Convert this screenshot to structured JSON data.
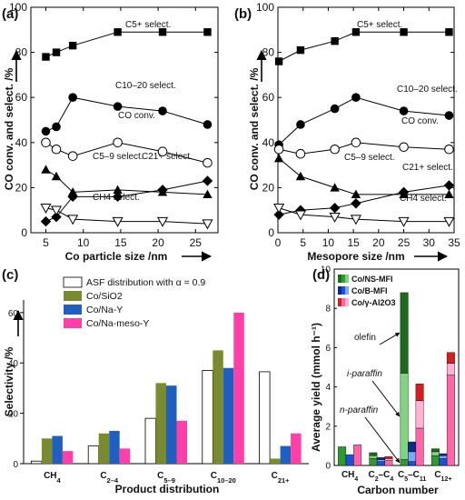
{
  "chart_data": [
    {
      "panel": "(a)",
      "type": "line",
      "xlabel": "Co particle size /nm",
      "ylabel": "CO conv. and select. /%",
      "xlim": [
        3,
        28
      ],
      "ylim": [
        0,
        100
      ],
      "xticks": [
        5,
        10,
        15,
        20,
        25
      ],
      "yticks": [
        0,
        20,
        40,
        60,
        80,
        100
      ],
      "series": [
        {
          "name": "C5+ select.",
          "marker": "square",
          "x": [
            5,
            6.4,
            8.6,
            14.6,
            20.6,
            26.6
          ],
          "y": [
            78,
            80,
            83,
            89,
            89,
            89
          ]
        },
        {
          "name": "C10–20 select.",
          "marker": "circle",
          "x": [
            5,
            6.4,
            8.6,
            14.6,
            20.6,
            26.6
          ],
          "y": [
            45,
            47,
            60,
            56,
            54,
            48
          ]
        },
        {
          "name": "CO conv.",
          "marker": "open-circle",
          "x": [
            5,
            6.4,
            8.6,
            14.6,
            20.6,
            26.6
          ],
          "y": [
            40,
            37,
            34,
            40,
            36,
            31
          ]
        },
        {
          "name": "C5–9 select.",
          "marker": "triangle",
          "x": [
            5,
            6.4,
            8.6,
            14.6,
            20.6,
            26.6
          ],
          "y": [
            28,
            25,
            18,
            19,
            18,
            17
          ]
        },
        {
          "name": "C21+ select.",
          "marker": "diamond",
          "x": [
            5,
            6.4,
            8.6,
            14.6,
            20.6,
            26.6
          ],
          "y": [
            5,
            7,
            16,
            16,
            19,
            23
          ]
        },
        {
          "name": "CH4 select.",
          "marker": "open-triangle-down",
          "x": [
            5,
            6.4,
            8.6,
            14.6,
            20.6,
            26.6
          ],
          "y": [
            11,
            10,
            6,
            5,
            5,
            4
          ]
        }
      ]
    },
    {
      "panel": "(b)",
      "type": "line",
      "xlabel": "Mesopore size /nm",
      "ylabel": "CO conv. and select. /%",
      "xlim": [
        0,
        35
      ],
      "ylim": [
        0,
        100
      ],
      "xticks": [
        0,
        5,
        10,
        15,
        20,
        25,
        30,
        35
      ],
      "yticks": [
        0,
        20,
        40,
        60,
        80,
        100
      ],
      "series": [
        {
          "name": "C5+ select.",
          "marker": "square",
          "x": [
            0.2,
            4.5,
            11.3,
            15.5,
            25,
            34
          ],
          "y": [
            76,
            81,
            85,
            89,
            89,
            89
          ]
        },
        {
          "name": "C10–20 select.",
          "marker": "circle",
          "x": [
            0.2,
            4.5,
            11.3,
            15.5,
            25,
            34
          ],
          "y": [
            39,
            48,
            55,
            60,
            54,
            52
          ]
        },
        {
          "name": "CO conv.",
          "marker": "open-circle",
          "x": [
            0.2,
            4.5,
            11.3,
            15.5,
            25,
            34
          ],
          "y": [
            37,
            35,
            37,
            40,
            38,
            37
          ]
        },
        {
          "name": "C5–9 select.",
          "marker": "triangle",
          "x": [
            0.2,
            4.5,
            11.3,
            15.5,
            25,
            34
          ],
          "y": [
            33,
            25,
            20,
            17,
            17,
            17
          ]
        },
        {
          "name": "C21+ select.",
          "marker": "diamond",
          "x": [
            0.2,
            4.5,
            11.3,
            15.5,
            25,
            34
          ],
          "y": [
            8,
            10,
            11,
            13,
            18,
            21
          ]
        },
        {
          "name": "CH4 select.",
          "marker": "open-triangle-down",
          "x": [
            0.2,
            4.5,
            11.3,
            15.5,
            25,
            34
          ],
          "y": [
            11,
            8,
            7,
            6,
            5,
            5
          ]
        }
      ]
    },
    {
      "panel": "(c)",
      "type": "bar",
      "xlabel": "Product distribution",
      "ylabel": "Selectivity /%",
      "ylim": [
        0,
        65
      ],
      "yticks": [
        0,
        20,
        40,
        60
      ],
      "categories": [
        "CH4",
        "C2–4",
        "C5–9",
        "C10–20",
        "C21+"
      ],
      "series": [
        {
          "name": "ASF distribution with α = 0.9",
          "color": "#ffffff",
          "values": [
            1,
            7,
            18,
            37,
            36.5
          ]
        },
        {
          "name": "Co/SiO2",
          "color": "#7a8a2e",
          "values": [
            10,
            12,
            32,
            45,
            2
          ]
        },
        {
          "name": "Co/Na-Y",
          "color": "#1f5fbf",
          "values": [
            11,
            13,
            31,
            38,
            7
          ]
        },
        {
          "name": "Co/Na-meso-Y",
          "color": "#ff3fa8",
          "values": [
            5,
            6,
            17,
            60,
            12
          ]
        }
      ]
    },
    {
      "panel": "(d)",
      "type": "bar",
      "stacked": true,
      "xlabel": "Carbon number",
      "ylabel": "Average yield (mmol h⁻¹)",
      "ylim": [
        0,
        10
      ],
      "yticks": [
        0,
        2,
        4,
        6,
        8,
        10
      ],
      "categories": [
        "CH4",
        "C2–C4",
        "C5–C11",
        "C12+"
      ],
      "series": [
        {
          "name": "Co/NS-MFI",
          "colors": {
            "n": "#2e9b2e",
            "i": "#7fd47f",
            "olefin": "#1a6b1a"
          },
          "stacks": [
            {
              "n": 0.95
            },
            {
              "n": 0.35,
              "i": 0.15,
              "olefin": 0.15
            },
            {
              "n": 0.3,
              "i": 4.4,
              "olefin": 4.1
            },
            {
              "n": 0.5,
              "i": 0.2,
              "olefin": 0.15
            }
          ]
        },
        {
          "name": "Co/B-MFI",
          "colors": {
            "n": "#1e4fd8",
            "i": "#7aa7ff",
            "olefin": "#0a2b8a"
          },
          "stacks": [
            {
              "n": 0.55
            },
            {
              "n": 0.2,
              "i": 0.1,
              "olefin": 0.1
            },
            {
              "n": 0.2,
              "i": 0.5,
              "olefin": 0.5
            },
            {
              "n": 0.35,
              "i": 0.15,
              "olefin": 0.1
            }
          ]
        },
        {
          "name": "Co/γ-Al2O3",
          "colors": {
            "n": "#ff66a8",
            "i": "#ffb3d1",
            "olefin": "#d41f1f"
          },
          "stacks": [
            {
              "n": 1.05
            },
            {
              "n": 0.25,
              "i": 0.1,
              "olefin": 0.1
            },
            {
              "n": 1.9,
              "i": 1.4,
              "olefin": 0.85
            },
            {
              "n": 4.6,
              "i": 0.6,
              "olefin": 0.55
            }
          ]
        }
      ],
      "annotations": [
        "olefin",
        "i-paraffin",
        "n-paraffin"
      ]
    }
  ],
  "labels": {
    "a": {
      "panel": "(a)",
      "xlabel": "Co particle size /nm",
      "ylabel": "CO conv. and select. /%",
      "ann": {
        "c5": "C5+ select.",
        "c10": "C10–20 select.",
        "co": "CO conv.",
        "c59": "C5–9 select.",
        "c21": "C21+ select.",
        "ch4": "CH4 select."
      }
    },
    "b": {
      "panel": "(b)",
      "xlabel": "Mesopore size /nm",
      "ylabel": "CO conv. and select. /%",
      "ann": {
        "c5": "C5+ select.",
        "c10": "C10–20 select.",
        "co": "CO conv.",
        "c59": "C5–9 select.",
        "c21": "C21+ select.",
        "ch4": "CH4 select."
      }
    },
    "c": {
      "panel": "(c)",
      "xlabel": "Product distribution",
      "ylabel": "Selectivity /%"
    },
    "d": {
      "panel": "(d)",
      "xlabel": "Carbon number",
      "ylabel": "Average yield (mmol h⁻¹)"
    }
  }
}
